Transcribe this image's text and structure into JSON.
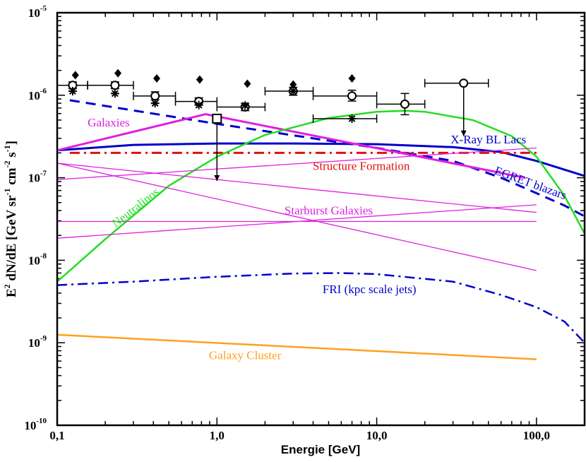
{
  "chart_data": {
    "type": "line",
    "xscale": "log",
    "yscale": "log",
    "xlim": [
      0.1,
      200
    ],
    "ylim": [
      1e-10,
      1e-05
    ],
    "xlabel": "Energie [GeV]",
    "ylabel": {
      "parts": [
        "E",
        "2",
        " dN/dE [GeV sr",
        "-1",
        " cm",
        "-2",
        " s",
        "-1",
        "]"
      ]
    },
    "x_ticks": [
      {
        "value": 0.1,
        "label": "0,1"
      },
      {
        "value": 1,
        "label": "1,0"
      },
      {
        "value": 10,
        "label": "10,0"
      },
      {
        "value": 100,
        "label": "100,0"
      }
    ],
    "y_ticks": [
      {
        "value": 1e-10,
        "base": "10",
        "exp": "-10"
      },
      {
        "value": 1e-09,
        "base": "10",
        "exp": "-9"
      },
      {
        "value": 1e-08,
        "base": "10",
        "exp": "-8"
      },
      {
        "value": 1e-07,
        "base": "10",
        "exp": "-7"
      },
      {
        "value": 1e-06,
        "base": "10",
        "exp": "-6"
      },
      {
        "value": 1e-05,
        "base": "10",
        "exp": "-5"
      }
    ],
    "series": [
      {
        "name": "X-Ray BL Lacs",
        "color": "#0000cc",
        "dash": "solid",
        "width": 3,
        "x": [
          0.1,
          0.3,
          1,
          3,
          10,
          30,
          60,
          100,
          200
        ],
        "y": [
          2.15e-07,
          2.5e-07,
          2.6e-07,
          2.6e-07,
          2.55e-07,
          2.35e-07,
          2.05e-07,
          1.6e-07,
          1.05e-07
        ],
        "label_at": [
          50,
          2.6e-07
        ],
        "label_rot": 0
      },
      {
        "name": "EGRET blazars",
        "color": "#0000cc",
        "dash": "14,9",
        "width": 3,
        "x": [
          0.12,
          1,
          10,
          30,
          60,
          100,
          150,
          200
        ],
        "y": [
          8.7e-07,
          4.5e-07,
          2.3e-07,
          1.6e-07,
          1e-07,
          6.5e-08,
          4.6e-08,
          3.4e-08
        ],
        "label_at": [
          90,
          7.8e-08
        ],
        "label_rot": 20
      },
      {
        "name": "Structure Formation",
        "color": "#dd1111",
        "dash": "14,6,3,6",
        "width": 3,
        "x": [
          0.12,
          1,
          10,
          100
        ],
        "y": [
          2e-07,
          2e-07,
          2e-07,
          2e-07
        ],
        "label_at": [
          8,
          1.25e-07
        ],
        "label_rot": 0
      },
      {
        "name": "Galaxies",
        "color": "#e020e0",
        "dash": "solid",
        "width": 3,
        "x": [
          0.1,
          0.85,
          85
        ],
        "y": [
          2.15e-07,
          5.9e-07,
          1e-07
        ],
        "label_at": [
          0.21,
          4.2e-07
        ],
        "label_rot": 0
      },
      {
        "name": "Neutralinos",
        "color": "#22dd22",
        "dash": "solid",
        "width": 2.5,
        "x": [
          0.1,
          0.2,
          0.5,
          1,
          2,
          5,
          10,
          15,
          20,
          40,
          70,
          100,
          150,
          200
        ],
        "y": [
          5.5e-09,
          1.8e-08,
          8e-08,
          1.8e-07,
          3.3e-07,
          5.3e-07,
          6.3e-07,
          6.5e-07,
          6.3e-07,
          5e-07,
          3.2e-07,
          1.8e-07,
          6e-08,
          2.1e-08
        ],
        "label_at": [
          0.32,
          4e-08
        ],
        "label_rot": -38
      },
      {
        "name": "Starburst Galaxies",
        "color": "#e020e0",
        "dash": "solid",
        "width": 1.3,
        "x": [
          0.1,
          100
        ],
        "y": [
          1.85e-08,
          4.7e-08
        ],
        "label_at": [
          5,
          3.6e-08
        ],
        "label_rot": 0
      },
      {
        "name": "",
        "color": "#e020e0",
        "dash": "solid",
        "width": 1.3,
        "x": [
          0.1,
          100
        ],
        "y": [
          2.95e-08,
          2.95e-08
        ]
      },
      {
        "name": "",
        "color": "#e020e0",
        "dash": "solid",
        "width": 1.3,
        "x": [
          0.1,
          100
        ],
        "y": [
          1.5e-07,
          7.5e-09
        ]
      },
      {
        "name": "",
        "color": "#e020e0",
        "dash": "solid",
        "width": 1.3,
        "x": [
          0.1,
          100
        ],
        "y": [
          9.5e-08,
          2.3e-07
        ]
      },
      {
        "name": "",
        "color": "#e020e0",
        "dash": "solid",
        "width": 1.3,
        "x": [
          0.1,
          100
        ],
        "y": [
          1.5e-07,
          3.8e-08
        ]
      },
      {
        "name": "FRI (kpc scale jets)",
        "color": "#0000cc",
        "dash": "14,6,3,6",
        "width": 2.5,
        "x": [
          0.1,
          0.3,
          1,
          3,
          6,
          10,
          30,
          60,
          100,
          150,
          200
        ],
        "y": [
          5e-09,
          5.5e-09,
          6.3e-09,
          6.9e-09,
          7e-09,
          6.8e-09,
          5.5e-09,
          3.8e-09,
          2.7e-09,
          1.8e-09,
          1e-09
        ],
        "label_at": [
          9,
          4e-09
        ],
        "label_rot": 0
      },
      {
        "name": "Galaxy Cluster",
        "color": "#ffa020",
        "dash": "solid",
        "width": 2.5,
        "x": [
          0.1,
          100
        ],
        "y": [
          1.25e-09,
          6.3e-10
        ],
        "label_at": [
          1.5,
          6.3e-10
        ],
        "label_rot": 0
      }
    ],
    "data_points": {
      "open_circles": [
        {
          "x": 0.125,
          "y": 1.32e-06,
          "xerr": [
            0.1,
            0.155
          ],
          "yerr": [
            1.2e-06,
            1.45e-06
          ]
        },
        {
          "x": 0.23,
          "y": 1.32e-06,
          "xerr": [
            0.155,
            0.3
          ],
          "yerr": [
            1.2e-06,
            1.45e-06
          ]
        },
        {
          "x": 0.41,
          "y": 9.8e-07,
          "xerr": [
            0.3,
            0.55
          ],
          "yerr": [
            8.8e-07,
            1.1e-06
          ]
        },
        {
          "x": 0.77,
          "y": 8.4e-07,
          "xerr": [
            0.55,
            1.0
          ],
          "yerr": [
            7.6e-07,
            9.3e-07
          ]
        },
        {
          "x": 1.5,
          "y": 7.2e-07,
          "xerr": [
            1.0,
            2.0
          ],
          "yerr": [
            6.5e-07,
            8e-07
          ]
        },
        {
          "x": 3.0,
          "y": 1.12e-06,
          "xerr": [
            2.0,
            4.0
          ],
          "yerr": [
            1e-06,
            1.25e-06
          ]
        },
        {
          "x": 7.0,
          "y": 9.8e-07,
          "xerr": [
            4.0,
            10.0
          ],
          "yerr": [
            8.5e-07,
            1.15e-06
          ]
        },
        {
          "x": 15.0,
          "y": 7.8e-07,
          "xerr": [
            10.0,
            20.0
          ],
          "yerr": [
            5.8e-07,
            1.05e-06
          ]
        },
        {
          "x": 35.0,
          "y": 1.4e-06,
          "xerr": [
            20.0,
            50.0
          ],
          "upper_limit": true
        }
      ],
      "diamonds": [
        {
          "x": 0.13,
          "y": 1.75e-06
        },
        {
          "x": 0.24,
          "y": 1.85e-06
        },
        {
          "x": 0.42,
          "y": 1.6e-06
        },
        {
          "x": 0.78,
          "y": 1.55e-06
        },
        {
          "x": 1.55,
          "y": 1.38e-06
        },
        {
          "x": 3.0,
          "y": 1.35e-06
        },
        {
          "x": 7.0,
          "y": 1.6e-06
        }
      ],
      "stars": [
        {
          "x": 0.125,
          "y": 1.12e-06
        },
        {
          "x": 0.23,
          "y": 1.05e-06
        },
        {
          "x": 0.41,
          "y": 8e-07
        },
        {
          "x": 0.77,
          "y": 7.6e-07
        },
        {
          "x": 1.5,
          "y": 7.5e-07
        },
        {
          "x": 3.0,
          "y": 1.12e-06
        },
        {
          "x": 7.0,
          "y": 5.2e-07,
          "xerr": [
            4.0,
            10.0
          ]
        }
      ],
      "square_limit": {
        "x": 1.0,
        "y": 5.2e-07,
        "upper_limit": true
      }
    }
  }
}
